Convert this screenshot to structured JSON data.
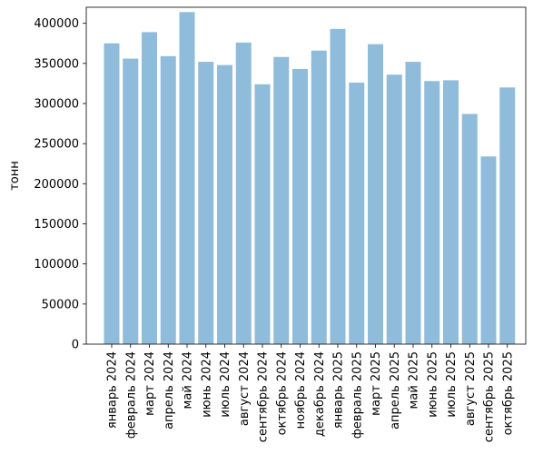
{
  "chart_data": {
    "type": "bar",
    "title": "",
    "xlabel": "",
    "ylabel": "тонн",
    "ylim": [
      0,
      420000
    ],
    "yticks": [
      0,
      50000,
      100000,
      150000,
      200000,
      250000,
      300000,
      350000,
      400000
    ],
    "grid": false,
    "bar_color": "#8fbcdb",
    "categories": [
      "январь 2024",
      "февраль 2024",
      "март 2024",
      "апрель 2024",
      "май 2024",
      "июнь 2024",
      "июль 2024",
      "август 2024",
      "сентябрь 2024",
      "октябрь 2024",
      "ноябрь 2024",
      "декабрь 2024",
      "январь 2025",
      "февраль 2025",
      "март 2025",
      "апрель 2025",
      "май 2025",
      "июнь 2025",
      "июль 2025",
      "август 2025",
      "сентябрь 2025",
      "октябрь 2025"
    ],
    "values": [
      375000,
      356000,
      389000,
      359000,
      414000,
      352000,
      348000,
      376000,
      324000,
      358000,
      343000,
      366000,
      393000,
      326000,
      374000,
      336000,
      352000,
      328000,
      329000,
      287000,
      234000,
      320000
    ]
  }
}
